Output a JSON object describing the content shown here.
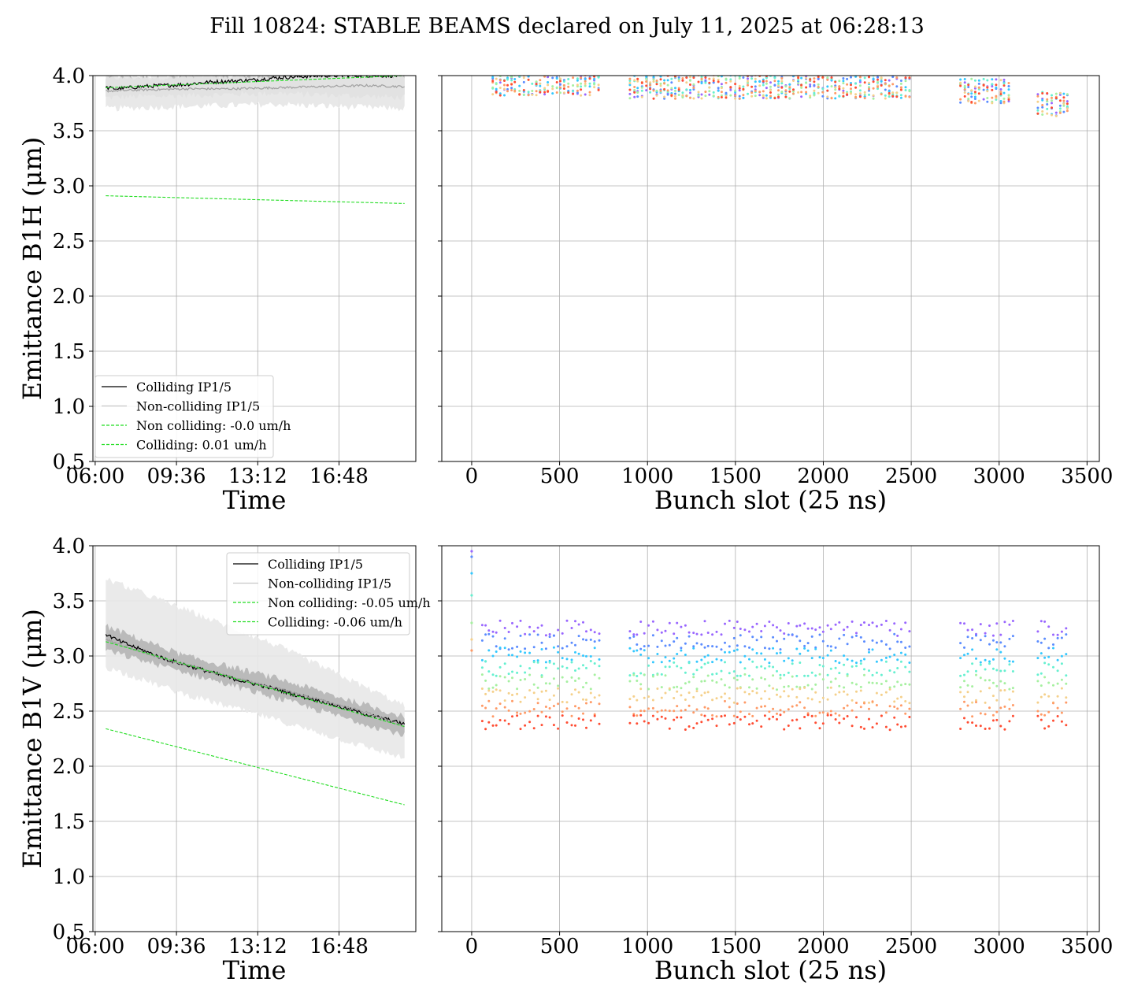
{
  "figure": {
    "title": "Fill 10824: STABLE BEAMS declared on July 11, 2025 at 06:28:13"
  },
  "chart_data": [
    {
      "id": "b1h-time",
      "type": "line",
      "xlabel": "Time",
      "ylabel": "Emittance B1H (μm)",
      "x_ticks": [
        "06:00",
        "09:36",
        "13:12",
        "16:48"
      ],
      "x_tick_hours": [
        6.0,
        9.6,
        13.2,
        16.8
      ],
      "xlim_hours": [
        5.9,
        20.2
      ],
      "ylim": [
        0.5,
        4.0
      ],
      "y_ticks": [
        0.5,
        1.0,
        1.5,
        2.0,
        2.5,
        3.0,
        3.5,
        4.0
      ],
      "grid": true,
      "legend_position": "lower-left",
      "legend": [
        {
          "label": "Colliding IP1/5",
          "color": "#000000",
          "dashed": false
        },
        {
          "label": "Non-colliding IP1/5",
          "color": "#c8c8c8",
          "dashed": false
        },
        {
          "label": "Non colliding: -0.0 um/h",
          "color": "#22dd22",
          "dashed": true
        },
        {
          "label": "Colliding: 0.01 um/h",
          "color": "#22dd22",
          "dashed": true
        }
      ],
      "series": [
        {
          "name": "Colliding IP1/5",
          "color": "#000000",
          "x_hours": [
            6.47,
            7.0,
            8.0,
            9.0,
            10.0,
            11.0,
            12.0,
            13.0,
            14.0,
            15.0,
            16.0,
            17.0,
            18.0,
            19.0,
            19.7
          ],
          "y": [
            3.89,
            3.88,
            3.9,
            3.91,
            3.92,
            3.94,
            3.95,
            3.96,
            3.98,
            3.99,
            4.0,
            4.0,
            4.0,
            4.0,
            4.0
          ]
        },
        {
          "name": "Non-colliding IP1/5",
          "color": "#a0a0a0",
          "x_hours": [
            6.47,
            8.0,
            10.0,
            12.0,
            14.0,
            16.0,
            18.0,
            19.7
          ],
          "y": [
            3.86,
            3.87,
            3.88,
            3.88,
            3.89,
            3.9,
            3.91,
            3.9
          ]
        },
        {
          "name": "Non colliding: -0.0 um/h",
          "color": "#22dd22",
          "dashed": true,
          "x_hours": [
            6.47,
            19.7
          ],
          "y": [
            2.91,
            2.84
          ]
        },
        {
          "name": "Colliding: 0.01 um/h",
          "color": "#22dd22",
          "dashed": true,
          "x_hours": [
            6.47,
            19.7
          ],
          "y": [
            3.89,
            4.0
          ]
        }
      ],
      "bands": [
        {
          "color": "#bdbdbd",
          "x_hours": [
            6.47,
            10.0,
            14.0,
            19.7
          ],
          "y_low": [
            3.8,
            3.82,
            3.84,
            3.8
          ],
          "y_high": [
            3.98,
            3.99,
            4.0,
            4.0
          ]
        },
        {
          "color": "#e6e6e6",
          "x_hours": [
            6.47,
            10.0,
            14.0,
            19.7
          ],
          "y_low": [
            3.7,
            3.72,
            3.74,
            3.7
          ],
          "y_high": [
            4.0,
            4.0,
            4.0,
            4.0
          ]
        }
      ]
    },
    {
      "id": "b1h-bunch",
      "type": "scatter",
      "xlabel": "Bunch slot (25 ns)",
      "xlim": [
        -170,
        3570
      ],
      "x_ticks": [
        0,
        500,
        1000,
        1500,
        2000,
        2500,
        3000,
        3500
      ],
      "ylim": [
        0.5,
        4.0
      ],
      "y_ticks": [
        0.5,
        1.0,
        1.5,
        2.0,
        2.5,
        3.0,
        3.5,
        4.0
      ],
      "grid": true,
      "bunch_trains": [
        [
          120,
          740
        ],
        [
          900,
          2510
        ],
        [
          2780,
          3080
        ],
        [
          3220,
          3400
        ]
      ],
      "y_center": [
        3.93,
        3.9,
        3.86,
        3.74
      ],
      "spread": 0.11,
      "colors": [
        "#9966ff",
        "#5b8cff",
        "#33c8ff",
        "#66f0d0",
        "#a6f0a0",
        "#f5d08a",
        "#ff9a66",
        "#ff4d33"
      ]
    },
    {
      "id": "b1v-time",
      "type": "line",
      "xlabel": "Time",
      "ylabel": "Emittance B1V (μm)",
      "x_ticks": [
        "06:00",
        "09:36",
        "13:12",
        "16:48"
      ],
      "x_tick_hours": [
        6.0,
        9.6,
        13.2,
        16.8
      ],
      "xlim_hours": [
        5.9,
        20.2
      ],
      "ylim": [
        0.5,
        4.0
      ],
      "y_ticks": [
        0.5,
        1.0,
        1.5,
        2.0,
        2.5,
        3.0,
        3.5,
        4.0
      ],
      "grid": true,
      "legend_position": "upper-right",
      "legend": [
        {
          "label": "Colliding IP1/5",
          "color": "#000000",
          "dashed": false
        },
        {
          "label": "Non-colliding IP1/5",
          "color": "#c8c8c8",
          "dashed": false
        },
        {
          "label": "Non colliding: -0.05 um/h",
          "color": "#22dd22",
          "dashed": true
        },
        {
          "label": "Colliding: -0.06 um/h",
          "color": "#22dd22",
          "dashed": true
        }
      ],
      "series": [
        {
          "name": "Colliding IP1/5",
          "color": "#000000",
          "x_hours": [
            6.47,
            7.0,
            8.0,
            9.0,
            10.0,
            11.0,
            12.0,
            13.0,
            14.0,
            15.0,
            16.0,
            17.0,
            18.0,
            19.0,
            19.7
          ],
          "y": [
            3.2,
            3.14,
            3.06,
            2.98,
            2.92,
            2.86,
            2.8,
            2.75,
            2.7,
            2.64,
            2.59,
            2.53,
            2.47,
            2.42,
            2.38
          ]
        },
        {
          "name": "Non-colliding IP1/5",
          "color": "#a0a0a0",
          "x_hours": [
            6.47,
            8.0,
            10.0,
            12.0,
            14.0,
            16.0,
            18.0,
            19.7
          ],
          "y": [
            3.15,
            3.04,
            2.92,
            2.81,
            2.71,
            2.6,
            2.49,
            2.36
          ]
        },
        {
          "name": "Non colliding: -0.05 um/h",
          "color": "#22dd22",
          "dashed": true,
          "x_hours": [
            6.47,
            19.7
          ],
          "y": [
            2.34,
            1.65
          ]
        },
        {
          "name": "Colliding: -0.06 um/h",
          "color": "#22dd22",
          "dashed": true,
          "x_hours": [
            6.47,
            19.7
          ],
          "y": [
            3.13,
            2.36
          ]
        }
      ],
      "bands": [
        {
          "color": "#e8e8e8",
          "x_hours": [
            6.47,
            10.0,
            14.0,
            19.7
          ],
          "y_low": [
            2.9,
            2.65,
            2.42,
            2.07
          ],
          "y_high": [
            3.7,
            3.42,
            3.1,
            2.55
          ]
        },
        {
          "color": "#b5b5b5",
          "x_hours": [
            6.47,
            10.0,
            14.0,
            19.7
          ],
          "y_low": [
            3.05,
            2.85,
            2.62,
            2.28
          ],
          "y_high": [
            3.27,
            3.0,
            2.8,
            2.45
          ]
        }
      ]
    },
    {
      "id": "b1v-bunch",
      "type": "scatter",
      "xlabel": "Bunch slot (25 ns)",
      "xlim": [
        -170,
        3570
      ],
      "x_ticks": [
        0,
        500,
        1000,
        1500,
        2000,
        2500,
        3000,
        3500
      ],
      "ylim": [
        0.5,
        4.0
      ],
      "y_ticks": [
        0.5,
        1.0,
        1.5,
        2.0,
        2.5,
        3.0,
        3.5,
        4.0
      ],
      "grid": true,
      "bunch_trains": [
        [
          60,
          740
        ],
        [
          900,
          2510
        ],
        [
          2780,
          3080
        ],
        [
          3220,
          3400
        ]
      ],
      "y_low": 2.4,
      "y_high": 3.25,
      "colors": [
        "#9966ff",
        "#5b8cff",
        "#33c8ff",
        "#66f0d0",
        "#a6f0a0",
        "#f5d08a",
        "#ff9a66",
        "#ff4d33"
      ]
    }
  ]
}
